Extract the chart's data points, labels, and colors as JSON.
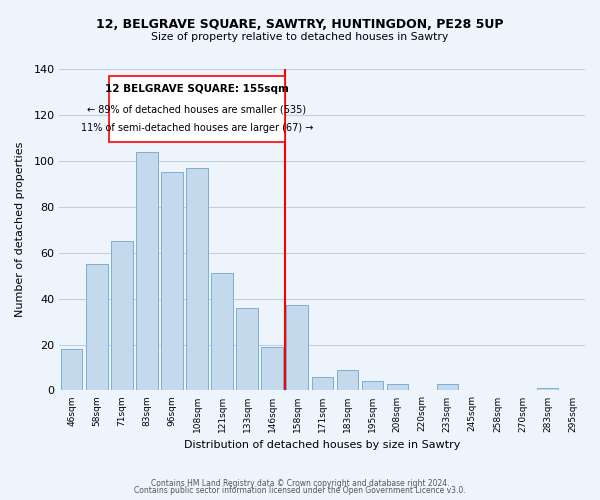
{
  "title": "12, BELGRAVE SQUARE, SAWTRY, HUNTINGDON, PE28 5UP",
  "subtitle": "Size of property relative to detached houses in Sawtry",
  "xlabel": "Distribution of detached houses by size in Sawtry",
  "ylabel": "Number of detached properties",
  "footer_lines": [
    "Contains HM Land Registry data © Crown copyright and database right 2024.",
    "Contains public sector information licensed under the Open Government Licence v3.0."
  ],
  "bar_labels": [
    "46sqm",
    "58sqm",
    "71sqm",
    "83sqm",
    "96sqm",
    "108sqm",
    "121sqm",
    "133sqm",
    "146sqm",
    "158sqm",
    "171sqm",
    "183sqm",
    "195sqm",
    "208sqm",
    "220sqm",
    "233sqm",
    "245sqm",
    "258sqm",
    "270sqm",
    "283sqm",
    "295sqm"
  ],
  "bar_values": [
    18,
    55,
    65,
    104,
    95,
    97,
    51,
    36,
    19,
    37,
    6,
    9,
    4,
    3,
    0,
    3,
    0,
    0,
    0,
    1,
    0
  ],
  "bar_color": "#c5d9ec",
  "bar_edge_color": "#7aafd4",
  "reference_line_x": 8.5,
  "annotation_box_label": "12 BELGRAVE SQUARE: 155sqm",
  "annotation_line1": "← 89% of detached houses are smaller (535)",
  "annotation_line2": "11% of semi-detached houses are larger (67) →",
  "ylim": [
    0,
    140
  ],
  "yticks": [
    0,
    20,
    40,
    60,
    80,
    100,
    120,
    140
  ],
  "background_color": "#eef4fb",
  "grid_color": "#c0d0e0"
}
